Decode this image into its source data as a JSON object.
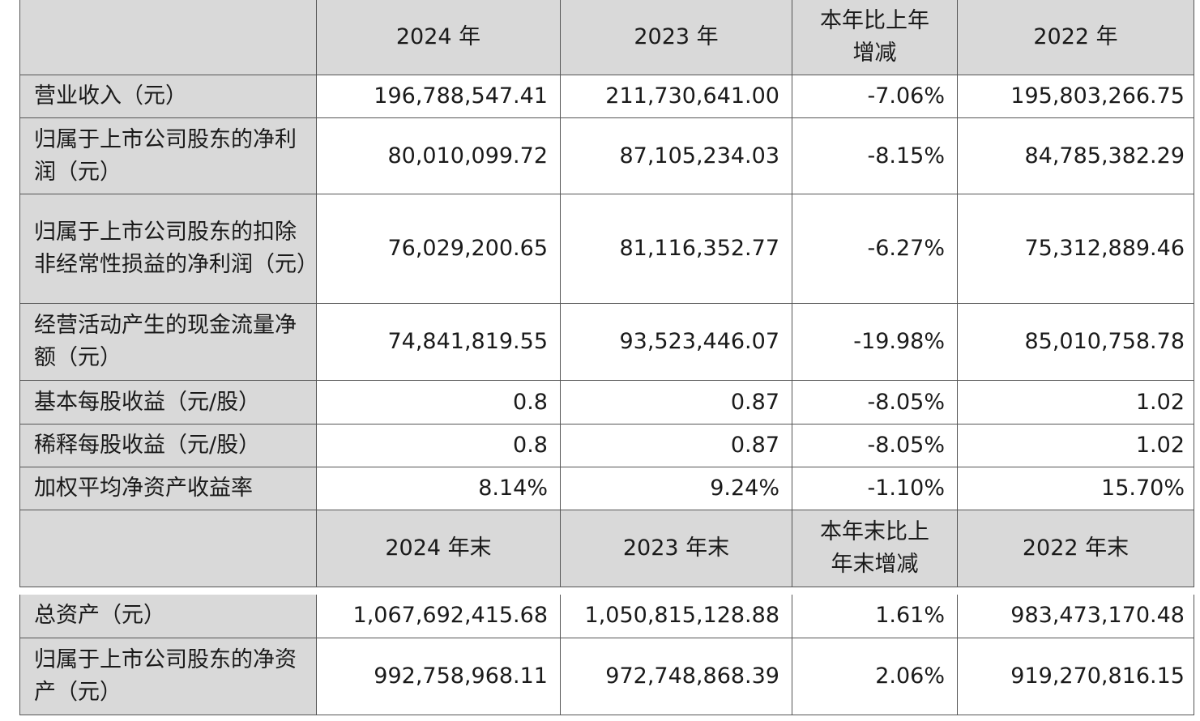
{
  "section1": {
    "headers": [
      "",
      "2024 年",
      "2023 年",
      "本年比上年增减",
      "2022 年"
    ],
    "rows": [
      {
        "label": "营业收入（元）",
        "values": [
          "196,788,547.41",
          "211,730,641.00",
          "-7.06%",
          "195,803,266.75"
        ]
      },
      {
        "label": "归属于上市公司股东的净利润（元）",
        "values": [
          "80,010,099.72",
          "87,105,234.03",
          "-8.15%",
          "84,785,382.29"
        ]
      },
      {
        "label": "归属于上市公司股东的扣除非经常性损益的净利润（元）",
        "values": [
          "76,029,200.65",
          "81,116,352.77",
          "-6.27%",
          "75,312,889.46"
        ]
      },
      {
        "label": "经营活动产生的现金流量净额（元）",
        "values": [
          "74,841,819.55",
          "93,523,446.07",
          "-19.98%",
          "85,010,758.78"
        ]
      },
      {
        "label": "基本每股收益（元/股）",
        "values": [
          "0.8",
          "0.87",
          "-8.05%",
          "1.02"
        ]
      },
      {
        "label": "稀释每股收益（元/股）",
        "values": [
          "0.8",
          "0.87",
          "-8.05%",
          "1.02"
        ]
      },
      {
        "label": "加权平均净资产收益率",
        "values": [
          "8.14%",
          "9.24%",
          "-1.10%",
          "15.70%"
        ]
      }
    ]
  },
  "section2": {
    "headers": [
      "",
      "2024 年末",
      "2023 年末",
      "本年末比上年末增减",
      "2022 年末"
    ],
    "rows": [
      {
        "label": "总资产（元）",
        "values": [
          "1,067,692,415.68",
          "1,050,815,128.88",
          "1.61%",
          "983,473,170.48"
        ]
      },
      {
        "label": "归属于上市公司股东的净资产（元）",
        "values": [
          "992,758,968.11",
          "972,748,868.39",
          "2.06%",
          "919,270,816.15"
        ]
      }
    ]
  }
}
